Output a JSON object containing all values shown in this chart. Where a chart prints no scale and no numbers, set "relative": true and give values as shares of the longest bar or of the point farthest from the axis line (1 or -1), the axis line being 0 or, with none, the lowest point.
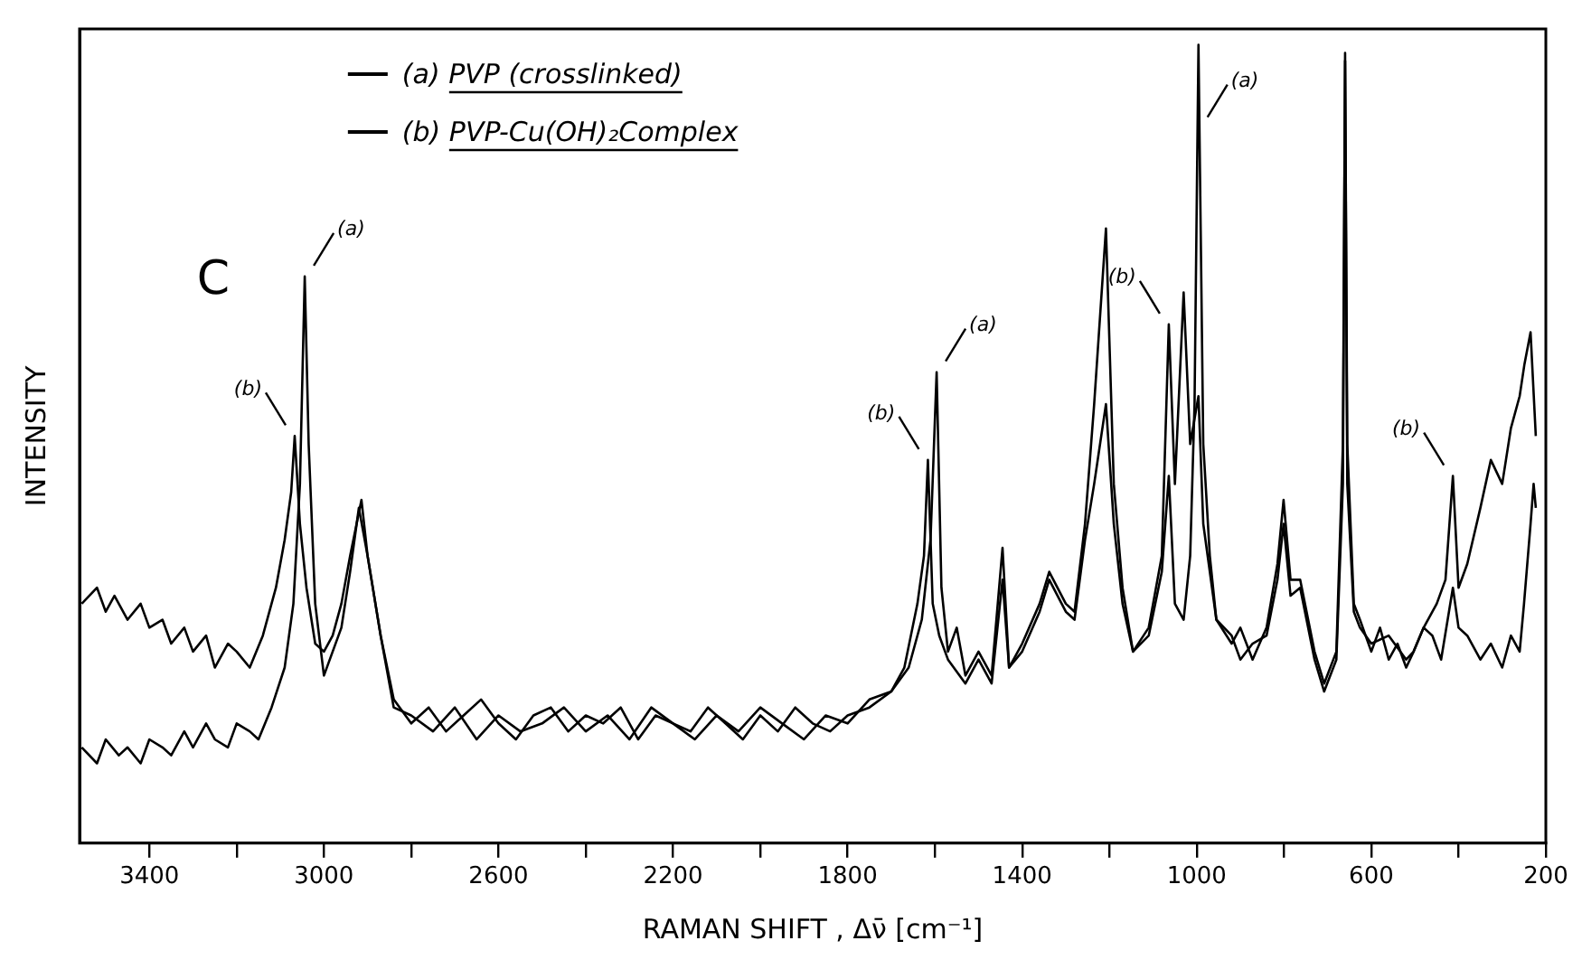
{
  "chart_data": {
    "type": "line",
    "relative": true,
    "xlabel": "RAMAN SHIFT , Δν̄ [cm⁻¹]",
    "ylabel": "INTENSITY",
    "xlim": [
      3560,
      200
    ],
    "xticks": [
      3400,
      {
        "value": 3200,
        "label": null
      },
      3000,
      {
        "value": 2800,
        "label": null
      },
      2600,
      {
        "value": 2400,
        "label": null
      },
      2200,
      {
        "value": 2000,
        "label": null
      },
      1800,
      {
        "value": 1600,
        "label": null
      },
      1400,
      {
        "value": 1200,
        "label": null
      },
      1000,
      {
        "value": 800,
        "label": null
      },
      600,
      {
        "value": 400,
        "label": null
      },
      200
    ],
    "grid": false,
    "legend": "top left",
    "annotations": [
      "C",
      {
        "text": "(b)",
        "x": 3067,
        "y": 0.51
      },
      {
        "text": "(a)",
        "x": 3044,
        "y": 0.71
      },
      {
        "text": "(b)",
        "x": 1616,
        "y": 0.48
      },
      {
        "text": "(a)",
        "x": 1596,
        "y": 0.59
      },
      {
        "text": "(b)",
        "x": 1064,
        "y": 0.65
      },
      {
        "text": "(a)",
        "x": 996,
        "y": 1.0
      },
      {
        "text": "(b)",
        "x": 413,
        "y": 0.46
      }
    ],
    "series": [
      {
        "name": "(a) PVP (crosslinked)",
        "color": "#000000",
        "x": [
          3555,
          3520,
          3500,
          3470,
          3450,
          3420,
          3400,
          3370,
          3350,
          3320,
          3300,
          3270,
          3250,
          3220,
          3200,
          3170,
          3150,
          3120,
          3090,
          3070,
          3055,
          3044,
          3035,
          3020,
          3000,
          2980,
          2960,
          2940,
          2920,
          2900,
          2870,
          2840,
          2800,
          2750,
          2700,
          2650,
          2600,
          2550,
          2500,
          2450,
          2400,
          2350,
          2300,
          2250,
          2200,
          2150,
          2100,
          2050,
          2000,
          1950,
          1900,
          1850,
          1800,
          1750,
          1700,
          1660,
          1630,
          1610,
          1596,
          1585,
          1570,
          1550,
          1530,
          1500,
          1470,
          1445,
          1430,
          1400,
          1360,
          1338,
          1300,
          1280,
          1256,
          1235,
          1208,
          1190,
          1170,
          1146,
          1110,
          1080,
          1064,
          1050,
          1030,
          1015,
          1005,
          996,
          985,
          970,
          955,
          920,
          900,
          872,
          840,
          815,
          801,
          785,
          763,
          730,
          708,
          680,
          665,
          660,
          655,
          640,
          626,
          600,
          580,
          560,
          540,
          520,
          503,
          480,
          460,
          440,
          413,
          400,
          380,
          350,
          326,
          300,
          280,
          260,
          250,
          235,
          228,
          223
        ],
        "values": [
          0.12,
          0.1,
          0.13,
          0.11,
          0.12,
          0.1,
          0.13,
          0.12,
          0.11,
          0.14,
          0.12,
          0.15,
          0.13,
          0.12,
          0.15,
          0.14,
          0.13,
          0.17,
          0.22,
          0.3,
          0.45,
          0.71,
          0.5,
          0.3,
          0.21,
          0.24,
          0.27,
          0.34,
          0.42,
          0.36,
          0.26,
          0.17,
          0.16,
          0.14,
          0.17,
          0.13,
          0.16,
          0.14,
          0.15,
          0.17,
          0.14,
          0.16,
          0.13,
          0.17,
          0.15,
          0.13,
          0.16,
          0.14,
          0.17,
          0.15,
          0.13,
          0.16,
          0.15,
          0.18,
          0.19,
          0.22,
          0.28,
          0.38,
          0.59,
          0.32,
          0.24,
          0.27,
          0.21,
          0.24,
          0.21,
          0.37,
          0.22,
          0.25,
          0.3,
          0.34,
          0.3,
          0.29,
          0.4,
          0.55,
          0.77,
          0.45,
          0.32,
          0.24,
          0.26,
          0.34,
          0.46,
          0.3,
          0.28,
          0.36,
          0.55,
          1.0,
          0.5,
          0.36,
          0.28,
          0.25,
          0.27,
          0.23,
          0.27,
          0.35,
          0.43,
          0.33,
          0.33,
          0.24,
          0.2,
          0.24,
          0.5,
          0.99,
          0.5,
          0.3,
          0.28,
          0.24,
          0.27,
          0.23,
          0.25,
          0.22,
          0.24,
          0.27,
          0.26,
          0.23,
          0.32,
          0.27,
          0.26,
          0.23,
          0.25,
          0.22,
          0.26,
          0.24,
          0.3,
          0.4,
          0.45,
          0.42
        ]
      },
      {
        "name": "(b) PVP-Cu(OH)₂Complex",
        "color": "#000000",
        "x": [
          3555,
          3520,
          3500,
          3480,
          3450,
          3420,
          3400,
          3370,
          3350,
          3320,
          3300,
          3270,
          3250,
          3220,
          3200,
          3170,
          3140,
          3110,
          3090,
          3075,
          3067,
          3055,
          3040,
          3020,
          3000,
          2980,
          2960,
          2940,
          2914,
          2900,
          2870,
          2840,
          2800,
          2760,
          2720,
          2680,
          2640,
          2600,
          2560,
          2520,
          2480,
          2440,
          2400,
          2360,
          2320,
          2280,
          2240,
          2200,
          2160,
          2120,
          2080,
          2040,
          2000,
          1960,
          1920,
          1880,
          1840,
          1800,
          1750,
          1700,
          1670,
          1640,
          1625,
          1616,
          1605,
          1590,
          1570,
          1530,
          1500,
          1470,
          1445,
          1430,
          1400,
          1360,
          1338,
          1300,
          1280,
          1256,
          1235,
          1208,
          1190,
          1170,
          1146,
          1110,
          1080,
          1064,
          1050,
          1030,
          1015,
          996,
          985,
          955,
          920,
          900,
          872,
          840,
          815,
          801,
          785,
          763,
          730,
          708,
          680,
          665,
          660,
          655,
          640,
          626,
          600,
          560,
          520,
          503,
          480,
          450,
          430,
          413,
          400,
          380,
          350,
          326,
          300,
          280,
          260,
          249,
          235,
          223
        ],
        "values": [
          0.3,
          0.32,
          0.29,
          0.31,
          0.28,
          0.3,
          0.27,
          0.28,
          0.25,
          0.27,
          0.24,
          0.26,
          0.22,
          0.25,
          0.24,
          0.22,
          0.26,
          0.32,
          0.38,
          0.44,
          0.51,
          0.4,
          0.32,
          0.25,
          0.24,
          0.26,
          0.3,
          0.36,
          0.43,
          0.36,
          0.26,
          0.18,
          0.15,
          0.17,
          0.14,
          0.16,
          0.18,
          0.15,
          0.13,
          0.16,
          0.17,
          0.14,
          0.16,
          0.15,
          0.17,
          0.13,
          0.16,
          0.15,
          0.14,
          0.17,
          0.15,
          0.13,
          0.16,
          0.14,
          0.17,
          0.15,
          0.14,
          0.16,
          0.17,
          0.19,
          0.22,
          0.3,
          0.36,
          0.48,
          0.3,
          0.26,
          0.23,
          0.2,
          0.23,
          0.2,
          0.33,
          0.22,
          0.24,
          0.29,
          0.33,
          0.29,
          0.28,
          0.38,
          0.45,
          0.55,
          0.4,
          0.3,
          0.24,
          0.27,
          0.36,
          0.65,
          0.45,
          0.69,
          0.5,
          0.56,
          0.4,
          0.28,
          0.26,
          0.23,
          0.25,
          0.26,
          0.33,
          0.4,
          0.31,
          0.32,
          0.23,
          0.19,
          0.23,
          0.45,
          0.98,
          0.45,
          0.29,
          0.27,
          0.25,
          0.26,
          0.23,
          0.24,
          0.27,
          0.3,
          0.33,
          0.46,
          0.32,
          0.35,
          0.42,
          0.48,
          0.45,
          0.52,
          0.56,
          0.6,
          0.64,
          0.51
        ]
      }
    ]
  }
}
